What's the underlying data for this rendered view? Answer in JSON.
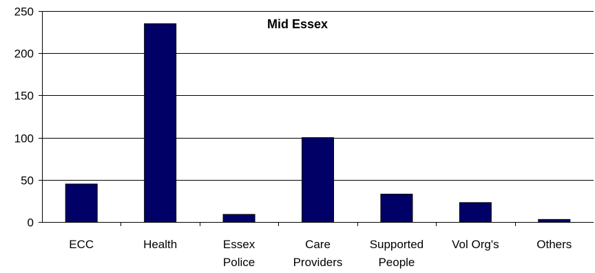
{
  "chart_data": {
    "type": "bar",
    "title": "Mid Essex",
    "xlabel": "",
    "ylabel": "",
    "categories": [
      [
        "ECC"
      ],
      [
        "Health"
      ],
      [
        "Essex",
        "Police"
      ],
      [
        "Care",
        "Providers"
      ],
      [
        "Supported",
        "People"
      ],
      [
        "Vol Org's"
      ],
      [
        "Others"
      ]
    ],
    "values": [
      45,
      235,
      9,
      100,
      33,
      23,
      3
    ],
    "ylim": [
      0,
      250
    ],
    "yticks": [
      "0",
      "50",
      "100",
      "150",
      "200",
      "250"
    ],
    "grid": true,
    "legend": "none",
    "colors": {
      "bar": "#000066",
      "bar_edge": "#000000",
      "grid": "#000000",
      "axis": "#000000"
    }
  }
}
